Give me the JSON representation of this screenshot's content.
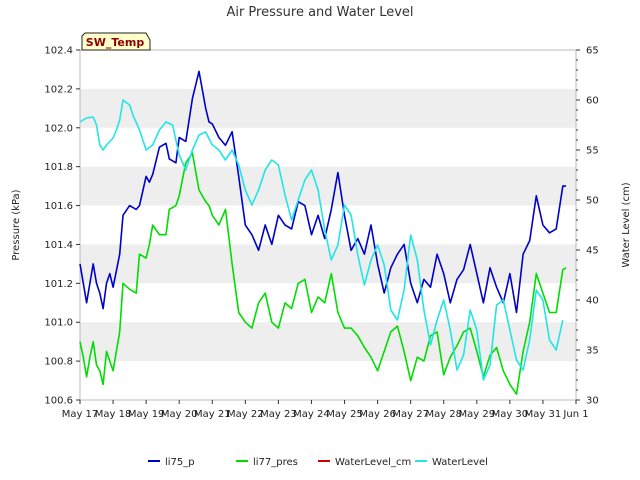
{
  "chart_data": {
    "type": "line",
    "title": "Air Pressure and Water Level",
    "xlabel": "",
    "ylabel_left": "Pressure (kPa)",
    "ylabel_right": "Water Level (cm)",
    "station_tag": "SW_Temp",
    "x_ticks": [
      "May 17",
      "May 18",
      "May 19",
      "May 20",
      "May 21",
      "May 22",
      "May 23",
      "May 24",
      "May 25",
      "May 26",
      "May 27",
      "May 28",
      "May 29",
      "May 30",
      "May 31",
      "Jun 1"
    ],
    "ylim_left": [
      100.6,
      102.4
    ],
    "yticks_left": [
      "100.6",
      "100.8",
      "101.0",
      "101.2",
      "101.4",
      "101.6",
      "101.8",
      "102.0",
      "102.2",
      "102.4"
    ],
    "ylim_right": [
      30,
      65
    ],
    "yticks_right": [
      "30",
      "35",
      "40",
      "45",
      "50",
      "55",
      "60",
      "65"
    ],
    "grid": "horizontal bands",
    "legend_position": "bottom",
    "series": [
      {
        "name": "li75_p",
        "axis": "left",
        "color": "#0000cc",
        "x": [
          17.0,
          17.1,
          17.2,
          17.3,
          17.4,
          17.5,
          17.6,
          17.7,
          17.8,
          17.9,
          18.0,
          18.2,
          18.3,
          18.5,
          18.7,
          18.8,
          19.0,
          19.1,
          19.2,
          19.4,
          19.6,
          19.7,
          19.9,
          20.0,
          20.2,
          20.4,
          20.6,
          20.8,
          20.9,
          21.0,
          21.2,
          21.4,
          21.6,
          21.8,
          22.0,
          22.2,
          22.4,
          22.6,
          22.8,
          23.0,
          23.2,
          23.4,
          23.6,
          23.8,
          24.0,
          24.2,
          24.4,
          24.6,
          24.8,
          25.0,
          25.2,
          25.4,
          25.6,
          25.8,
          26.0,
          26.2,
          26.4,
          26.6,
          26.8,
          27.0,
          27.2,
          27.4,
          27.6,
          27.8,
          28.0,
          28.2,
          28.4,
          28.6,
          28.8,
          29.0,
          29.2,
          29.4,
          29.6,
          29.8,
          30.0,
          30.2,
          30.4,
          30.6,
          30.8,
          31.0,
          31.2,
          31.4,
          31.6,
          31.7
        ],
        "y": [
          101.3,
          101.2,
          101.1,
          101.2,
          101.3,
          101.2,
          101.15,
          101.07,
          101.2,
          101.25,
          101.18,
          101.35,
          101.55,
          101.6,
          101.58,
          101.6,
          101.75,
          101.72,
          101.76,
          101.9,
          101.92,
          101.84,
          101.82,
          101.95,
          101.93,
          102.15,
          102.29,
          102.1,
          102.03,
          102.02,
          101.95,
          101.91,
          101.98,
          101.75,
          101.5,
          101.45,
          101.37,
          101.5,
          101.4,
          101.55,
          101.5,
          101.48,
          101.62,
          101.6,
          101.45,
          101.55,
          101.43,
          101.58,
          101.77,
          101.55,
          101.37,
          101.43,
          101.35,
          101.5,
          101.3,
          101.15,
          101.28,
          101.35,
          101.4,
          101.2,
          101.1,
          101.22,
          101.18,
          101.35,
          101.25,
          101.1,
          101.22,
          101.27,
          101.4,
          101.25,
          101.1,
          101.28,
          101.18,
          101.1,
          101.25,
          101.05,
          101.35,
          101.42,
          101.65,
          101.5,
          101.46,
          101.48,
          101.7,
          101.7
        ]
      },
      {
        "name": "li77_pres",
        "axis": "left",
        "color": "#00dd00",
        "x": [
          17.0,
          17.1,
          17.2,
          17.3,
          17.4,
          17.5,
          17.6,
          17.7,
          17.8,
          17.9,
          18.0,
          18.2,
          18.3,
          18.5,
          18.7,
          18.8,
          19.0,
          19.1,
          19.2,
          19.4,
          19.6,
          19.7,
          19.9,
          20.0,
          20.2,
          20.4,
          20.6,
          20.8,
          20.9,
          21.0,
          21.2,
          21.4,
          21.6,
          21.8,
          22.0,
          22.2,
          22.4,
          22.6,
          22.8,
          23.0,
          23.2,
          23.4,
          23.6,
          23.8,
          24.0,
          24.2,
          24.4,
          24.6,
          24.8,
          25.0,
          25.2,
          25.4,
          25.6,
          25.8,
          26.0,
          26.2,
          26.4,
          26.6,
          26.8,
          27.0,
          27.2,
          27.4,
          27.6,
          27.8,
          28.0,
          28.2,
          28.4,
          28.6,
          28.8,
          29.0,
          29.2,
          29.4,
          29.6,
          29.8,
          30.0,
          30.2,
          30.4,
          30.6,
          30.8,
          31.0,
          31.2,
          31.4,
          31.6,
          31.7
        ],
        "y": [
          100.9,
          100.82,
          100.72,
          100.82,
          100.9,
          100.78,
          100.75,
          100.68,
          100.85,
          100.8,
          100.75,
          100.95,
          101.2,
          101.17,
          101.15,
          101.35,
          101.33,
          101.4,
          101.5,
          101.45,
          101.45,
          101.58,
          101.6,
          101.65,
          101.82,
          101.87,
          101.68,
          101.62,
          101.6,
          101.55,
          101.5,
          101.58,
          101.3,
          101.05,
          101.0,
          100.97,
          101.1,
          101.15,
          101.0,
          100.97,
          101.1,
          101.07,
          101.2,
          101.22,
          101.05,
          101.13,
          101.1,
          101.25,
          101.05,
          100.97,
          100.97,
          100.93,
          100.87,
          100.82,
          100.75,
          100.85,
          100.95,
          100.98,
          100.85,
          100.7,
          100.82,
          100.8,
          100.93,
          100.95,
          100.73,
          100.82,
          100.88,
          100.95,
          100.97,
          100.85,
          100.72,
          100.83,
          100.87,
          100.75,
          100.68,
          100.63,
          100.85,
          101.0,
          101.25,
          101.15,
          101.05,
          101.05,
          101.27,
          101.28
        ]
      },
      {
        "name": "WaterLevel_cm",
        "axis": "right",
        "color": "#cc0000",
        "x": [],
        "y": []
      },
      {
        "name": "WaterLevel",
        "axis": "right",
        "color": "#22e5e5",
        "x": [
          17.0,
          17.2,
          17.4,
          17.5,
          17.6,
          17.7,
          17.8,
          18.0,
          18.1,
          18.2,
          18.3,
          18.5,
          18.6,
          18.8,
          19.0,
          19.2,
          19.4,
          19.6,
          19.8,
          20.0,
          20.2,
          20.4,
          20.6,
          20.8,
          21.0,
          21.2,
          21.4,
          21.6,
          21.8,
          22.0,
          22.2,
          22.4,
          22.6,
          22.8,
          23.0,
          23.2,
          23.4,
          23.6,
          23.8,
          24.0,
          24.2,
          24.4,
          24.6,
          24.8,
          25.0,
          25.2,
          25.4,
          25.6,
          25.8,
          26.0,
          26.2,
          26.4,
          26.6,
          26.8,
          27.0,
          27.2,
          27.4,
          27.6,
          27.8,
          28.0,
          28.2,
          28.4,
          28.6,
          28.8,
          29.0,
          29.2,
          29.4,
          29.6,
          29.8,
          30.0,
          30.2,
          30.4,
          30.6,
          30.8,
          31.0,
          31.2,
          31.4,
          31.6
        ],
        "y": [
          57.8,
          58.2,
          58.3,
          57.5,
          55.5,
          55.0,
          55.5,
          56.2,
          57.0,
          58.0,
          60.0,
          59.5,
          58.5,
          57.0,
          55.0,
          55.5,
          57.0,
          57.8,
          57.5,
          54.5,
          53.0,
          55.0,
          56.5,
          56.8,
          55.5,
          55.0,
          54.0,
          55.0,
          53.5,
          51.0,
          49.5,
          51.0,
          53.0,
          54.0,
          53.5,
          50.5,
          48.0,
          50.0,
          52.0,
          53.0,
          51.0,
          47.0,
          44.0,
          45.5,
          49.5,
          48.5,
          44.5,
          41.5,
          44.0,
          45.5,
          43.5,
          39.0,
          38.0,
          41.0,
          46.5,
          44.0,
          39.0,
          35.5,
          38.0,
          40.0,
          37.0,
          33.0,
          34.5,
          39.0,
          37.0,
          32.0,
          33.5,
          39.5,
          40.0,
          37.0,
          34.0,
          33.0,
          36.0,
          41.0,
          40.0,
          36.0,
          35.0,
          38.0
        ]
      }
    ]
  }
}
